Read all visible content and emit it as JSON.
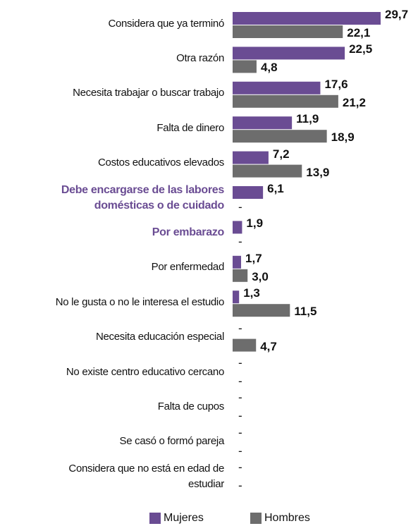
{
  "chart_data": {
    "type": "barh",
    "categories": [
      "Considera que ya terminó",
      "Otra razón",
      "Necesita trabajar o buscar trabajo",
      "Falta de dinero",
      "Costos educativos elevados",
      "Debe encargarse de las labores\ndomésticas o de cuidado",
      "Por embarazo",
      "Por enfermedad",
      "No le gusta o no le interesa el estudio",
      "Necesita educación especial",
      "No existe centro educativo cercano",
      "Falta de cupos",
      "Se casó o formó pareja",
      "Considera que no está en edad de\nestudiar"
    ],
    "highlighted_categories": [
      5,
      6
    ],
    "highlight_color": "#6a4c93",
    "series": [
      {
        "name": "Mujeres",
        "color": "#6a4c93",
        "values": [
          29.7,
          22.5,
          17.6,
          11.9,
          7.2,
          6.1,
          1.9,
          1.7,
          1.3,
          null,
          null,
          null,
          null,
          null
        ],
        "value_labels": [
          "29,7",
          "22,5",
          "17,6",
          "11,9",
          "7,2",
          "6,1",
          "1,9",
          "1,7",
          "1,3",
          "-",
          "-",
          "-",
          "-",
          "-"
        ]
      },
      {
        "name": "Hombres",
        "color": "#6d6d6d",
        "values": [
          22.1,
          4.8,
          21.2,
          18.9,
          13.9,
          null,
          null,
          3.0,
          11.5,
          4.7,
          null,
          null,
          null,
          null
        ],
        "value_labels": [
          "22,1",
          "4,8",
          "21,2",
          "18,9",
          "13,9",
          "-",
          "-",
          "3,0",
          "11,5",
          "4,7",
          "-",
          "-",
          "-",
          "-"
        ]
      }
    ]
  }
}
